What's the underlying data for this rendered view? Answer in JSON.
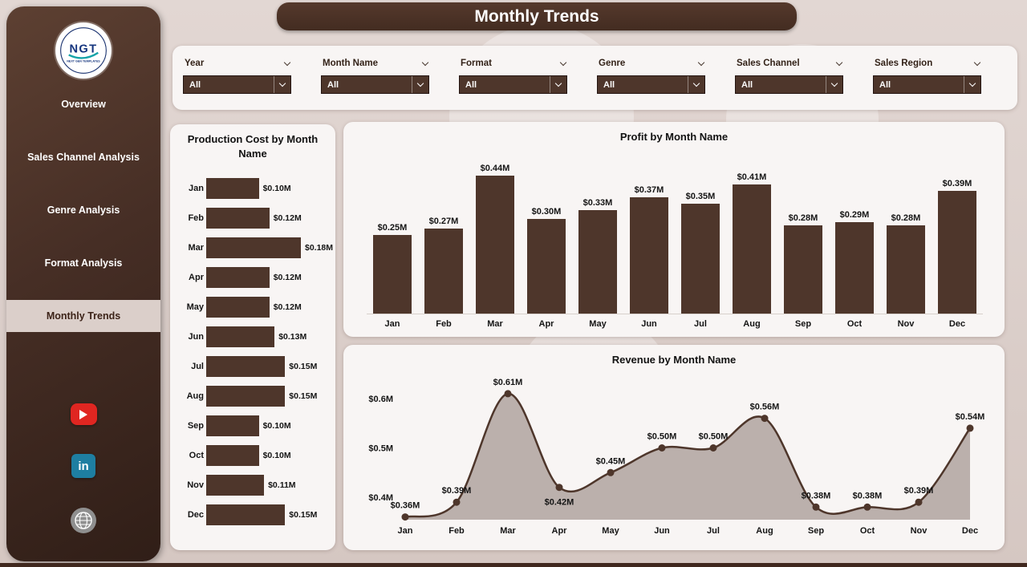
{
  "colors": {
    "primary": "#4e362b",
    "panel_bg": "#f8f5f4",
    "active_nav_bg": "#dbcfca",
    "youtube_red": "#e02621",
    "linkedin_teal": "#1e7ea1",
    "globe_gray": "#8f8f8f",
    "area_fill": "rgba(112,94,84,0.45)"
  },
  "header": {
    "title": "Monthly Trends"
  },
  "sidebar": {
    "logo_text": "NGT",
    "logo_subtext": "NEXT GEN TEMPLATES",
    "items": [
      {
        "label": "Overview"
      },
      {
        "label": "Sales Channel Analysis"
      },
      {
        "label": "Genre Analysis"
      },
      {
        "label": "Format Analysis"
      },
      {
        "label": "Monthly Trends"
      }
    ],
    "active_item": "Monthly Trends",
    "linkedin_label": "in",
    "social_icons": [
      "youtube-icon",
      "linkedin-icon",
      "globe-icon"
    ]
  },
  "filters": [
    {
      "label": "Year",
      "value": "All"
    },
    {
      "label": "Month Name",
      "value": "All"
    },
    {
      "label": "Format",
      "value": "All"
    },
    {
      "label": "Genre",
      "value": "All"
    },
    {
      "label": "Sales Channel",
      "value": "All"
    },
    {
      "label": "Sales Region",
      "value": "All"
    }
  ],
  "chart_data": [
    {
      "type": "bar",
      "orientation": "horizontal",
      "title": "Production Cost by Month Name",
      "categories": [
        "Jan",
        "Feb",
        "Mar",
        "Apr",
        "May",
        "Jun",
        "Jul",
        "Aug",
        "Sep",
        "Oct",
        "Nov",
        "Dec"
      ],
      "values": [
        0.1,
        0.12,
        0.18,
        0.12,
        0.12,
        0.13,
        0.15,
        0.15,
        0.1,
        0.1,
        0.11,
        0.15
      ],
      "labels": [
        "$0.10M",
        "$0.12M",
        "$0.18M",
        "$0.12M",
        "$0.12M",
        "$0.13M",
        "$0.15M",
        "$0.15M",
        "$0.10M",
        "$0.10M",
        "$0.11M",
        "$0.15M"
      ],
      "xlim": [
        0,
        0.18
      ]
    },
    {
      "type": "bar",
      "orientation": "vertical",
      "title": "Profit by Month Name",
      "categories": [
        "Jan",
        "Feb",
        "Mar",
        "Apr",
        "May",
        "Jun",
        "Jul",
        "Aug",
        "Sep",
        "Oct",
        "Nov",
        "Dec"
      ],
      "values": [
        0.25,
        0.27,
        0.44,
        0.3,
        0.33,
        0.37,
        0.35,
        0.41,
        0.28,
        0.29,
        0.28,
        0.39
      ],
      "labels": [
        "$0.25M",
        "$0.27M",
        "$0.44M",
        "$0.30M",
        "$0.33M",
        "$0.37M",
        "$0.35M",
        "$0.41M",
        "$0.28M",
        "$0.29M",
        "$0.28M",
        "$0.39M"
      ],
      "ylim": [
        0,
        0.44
      ]
    },
    {
      "type": "area",
      "title": "Revenue by Month Name",
      "categories": [
        "Jan",
        "Feb",
        "Mar",
        "Apr",
        "May",
        "Jun",
        "Jul",
        "Aug",
        "Sep",
        "Oct",
        "Nov",
        "Dec"
      ],
      "values": [
        0.36,
        0.39,
        0.61,
        0.42,
        0.45,
        0.5,
        0.5,
        0.56,
        0.38,
        0.38,
        0.39,
        0.54
      ],
      "labels": [
        "$0.36M",
        "$0.39M",
        "$0.61M",
        "$0.42M",
        "$0.45M",
        "$0.50M",
        "$0.50M",
        "$0.56M",
        "$0.38M",
        "$0.38M",
        "$0.39M",
        "$0.54M"
      ],
      "yticks": [
        {
          "label": "$0.6M",
          "value": 0.6
        },
        {
          "label": "$0.5M",
          "value": 0.5
        },
        {
          "label": "$0.4M",
          "value": 0.4
        }
      ],
      "labels_below_indices": [
        3
      ],
      "ylim": [
        0.34,
        0.65
      ]
    }
  ]
}
